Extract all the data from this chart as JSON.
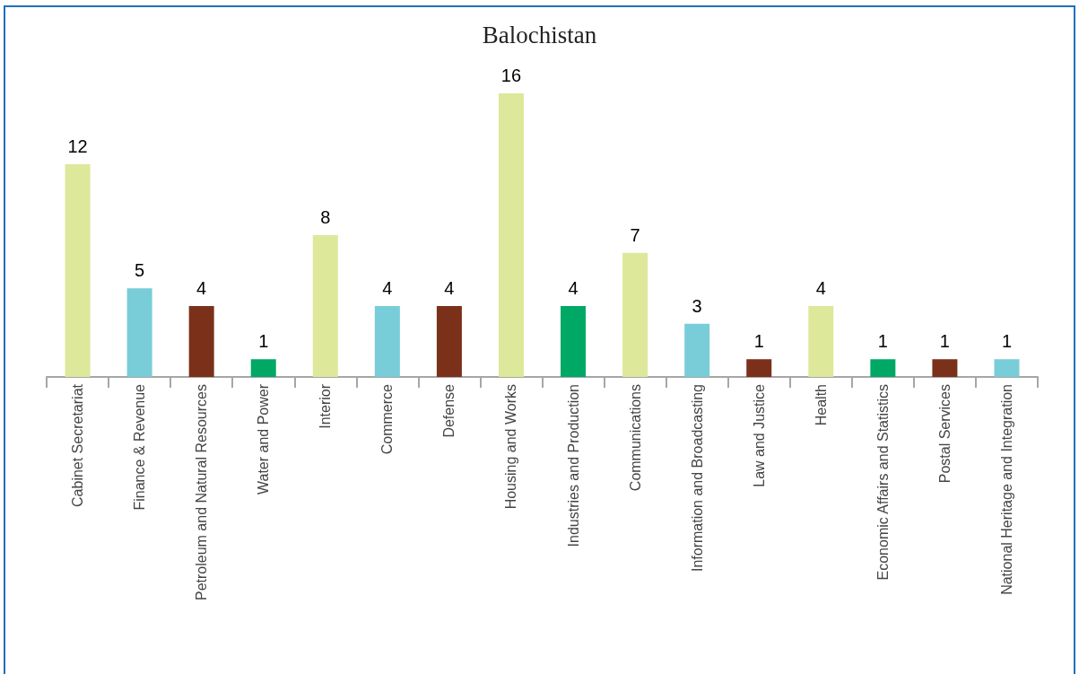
{
  "chart_data": {
    "type": "bar",
    "title": "Balochistan",
    "categories": [
      "Cabinet Secretariat",
      "Finance & Revenue",
      "Petroleum and Natural Resources",
      "Water and Power",
      "Interior",
      "Commerce",
      "Defense",
      "Housing and Works",
      "Industries and Production",
      "Communications",
      "Information and Broadcasting",
      "Law and Justice",
      "Health",
      "Economic Affairs and Statistics",
      "Postal Services",
      "National Heritage and Integration"
    ],
    "values": [
      12,
      5,
      4,
      1,
      8,
      4,
      4,
      16,
      4,
      7,
      3,
      1,
      4,
      1,
      1,
      1
    ],
    "colors": [
      "#dde89a",
      "#78cdd8",
      "#7b3119",
      "#00a866",
      "#dde89a",
      "#78cdd8",
      "#7b3119",
      "#dde89a",
      "#00a866",
      "#dde89a",
      "#78cdd8",
      "#7b3119",
      "#dde89a",
      "#00a866",
      "#7b3119",
      "#78cdd8"
    ],
    "data_labels": true,
    "tick_labels": "x"
  }
}
